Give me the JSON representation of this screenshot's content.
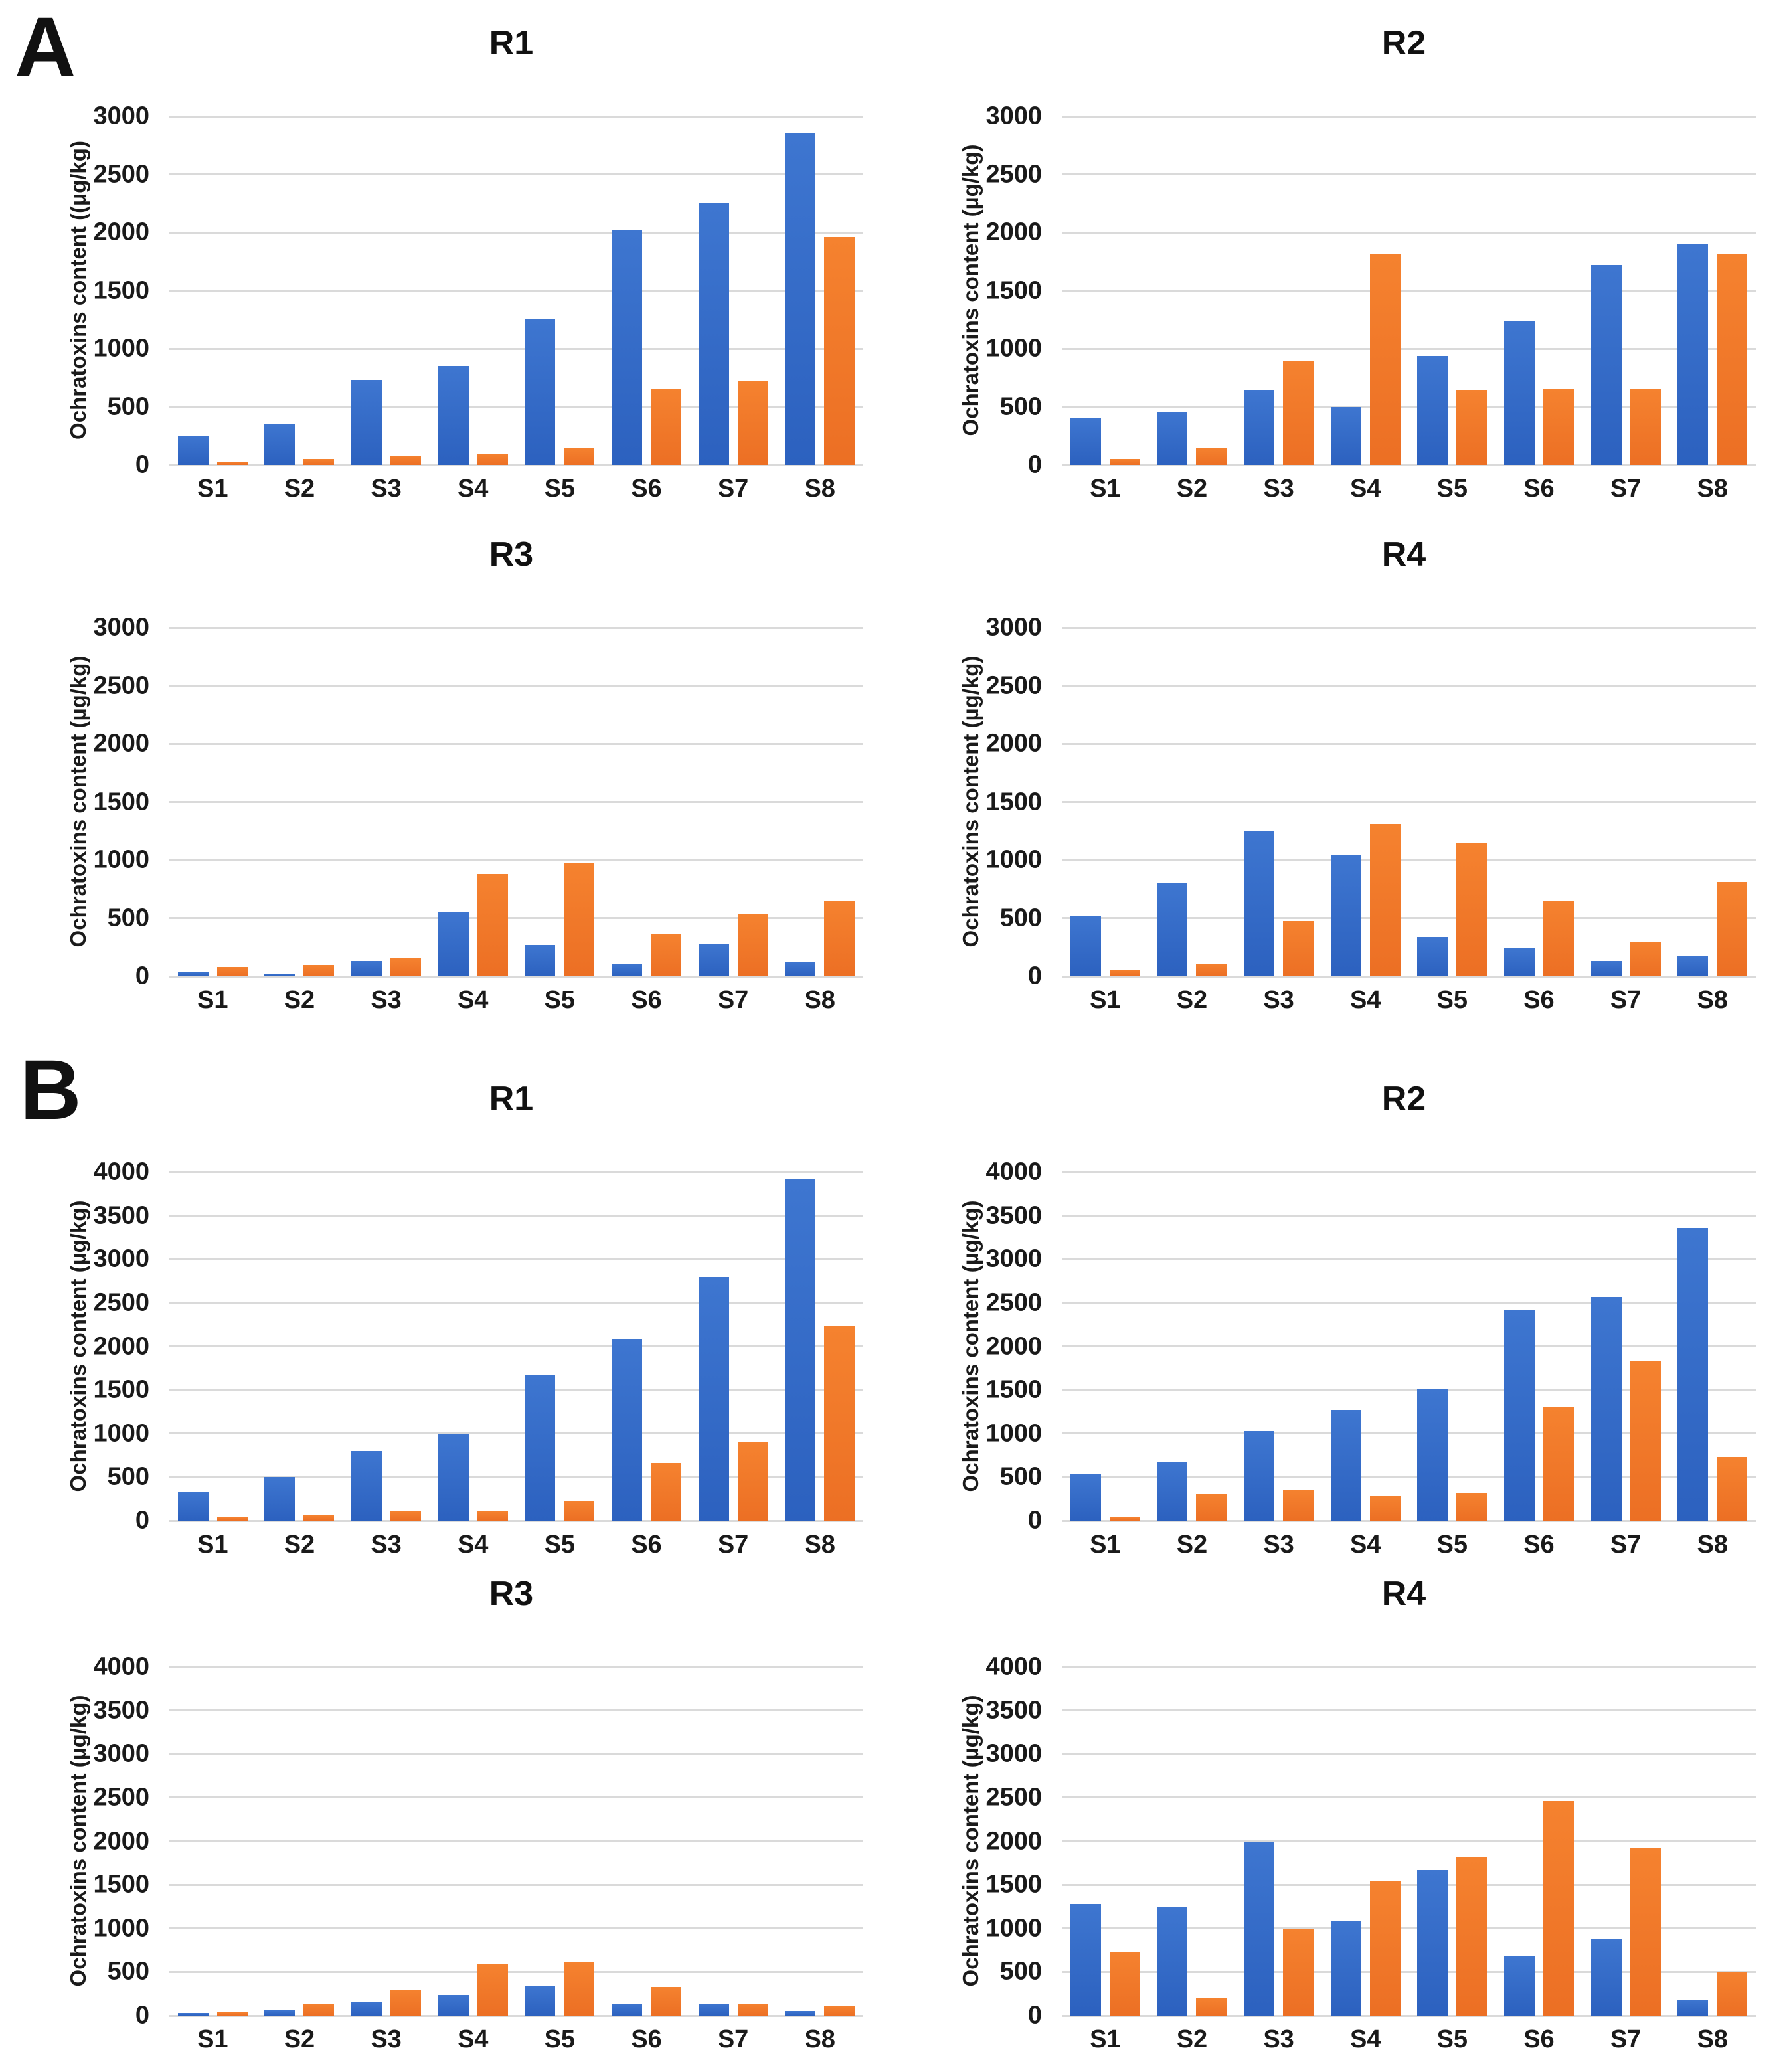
{
  "figure": {
    "panel_a_label": "A",
    "panel_b_label": "B"
  },
  "colors": {
    "series_blue": "#2f66c4",
    "series_orange": "#ee7428",
    "gridline": "#dadada",
    "text": "#1a1a1a",
    "background": "#ffffff"
  },
  "chart_data": [
    {
      "type": "bar",
      "panel": "A",
      "title": "R1",
      "ylabel": "Ochratoxins content ((µg/kg)",
      "xlabel": "",
      "categories": [
        "S1",
        "S2",
        "S3",
        "S4",
        "S5",
        "S6",
        "S7",
        "S8"
      ],
      "ylim": [
        0,
        3000
      ],
      "yticks": [
        0,
        500,
        1000,
        1500,
        2000,
        2500,
        3000
      ],
      "grid": true,
      "legend": "none",
      "series": [
        {
          "name": "blue",
          "color_key": "series_blue",
          "values": [
            250,
            350,
            730,
            850,
            1250,
            2020,
            2260,
            2860
          ]
        },
        {
          "name": "orange",
          "color_key": "series_orange",
          "values": [
            30,
            50,
            80,
            95,
            150,
            660,
            720,
            1960
          ]
        }
      ]
    },
    {
      "type": "bar",
      "panel": "A",
      "title": "R2",
      "ylabel": "Ochratoxins content (µg/kg)",
      "xlabel": "",
      "categories": [
        "S1",
        "S2",
        "S3",
        "S4",
        "S5",
        "S6",
        "S7",
        "S8"
      ],
      "ylim": [
        0,
        3000
      ],
      "yticks": [
        0,
        500,
        1000,
        1500,
        2000,
        2500,
        3000
      ],
      "grid": true,
      "legend": "none",
      "series": [
        {
          "name": "blue",
          "color_key": "series_blue",
          "values": [
            400,
            460,
            640,
            500,
            940,
            1240,
            1720,
            1900
          ]
        },
        {
          "name": "orange",
          "color_key": "series_orange",
          "values": [
            50,
            150,
            900,
            1820,
            640,
            650,
            650,
            1820
          ]
        }
      ]
    },
    {
      "type": "bar",
      "panel": "A",
      "title": "R3",
      "ylabel": "Ochratoxins content (µg/kg)",
      "xlabel": "",
      "categories": [
        "S1",
        "S2",
        "S3",
        "S4",
        "S5",
        "S6",
        "S7",
        "S8"
      ],
      "ylim": [
        0,
        3000
      ],
      "yticks": [
        0,
        500,
        1000,
        1500,
        2000,
        2500,
        3000
      ],
      "grid": true,
      "legend": "none",
      "series": [
        {
          "name": "blue",
          "color_key": "series_blue",
          "values": [
            40,
            25,
            130,
            550,
            270,
            105,
            280,
            120
          ]
        },
        {
          "name": "orange",
          "color_key": "series_orange",
          "values": [
            80,
            95,
            155,
            880,
            970,
            360,
            540,
            650
          ]
        }
      ]
    },
    {
      "type": "bar",
      "panel": "A",
      "title": "R4",
      "ylabel": "Ochratoxins content (µg/kg)",
      "xlabel": "",
      "categories": [
        "S1",
        "S2",
        "S3",
        "S4",
        "S5",
        "S6",
        "S7",
        "S8"
      ],
      "ylim": [
        0,
        3000
      ],
      "yticks": [
        0,
        500,
        1000,
        1500,
        2000,
        2500,
        3000
      ],
      "grid": true,
      "legend": "none",
      "series": [
        {
          "name": "blue",
          "color_key": "series_blue",
          "values": [
            520,
            800,
            1250,
            1040,
            340,
            240,
            130,
            170
          ]
        },
        {
          "name": "orange",
          "color_key": "series_orange",
          "values": [
            55,
            110,
            475,
            1310,
            1145,
            650,
            300,
            810
          ]
        }
      ]
    },
    {
      "type": "bar",
      "panel": "B",
      "title": "R1",
      "ylabel": "Ochratoxins content (µg/kg)",
      "xlabel": "",
      "categories": [
        "S1",
        "S2",
        "S3",
        "S4",
        "S5",
        "S6",
        "S7",
        "S8"
      ],
      "ylim": [
        0,
        4000
      ],
      "yticks": [
        0,
        500,
        1000,
        1500,
        2000,
        2500,
        3000,
        3500,
        4000
      ],
      "grid": true,
      "legend": "none",
      "series": [
        {
          "name": "blue",
          "color_key": "series_blue",
          "values": [
            330,
            500,
            800,
            1000,
            1680,
            2080,
            2800,
            3920
          ]
        },
        {
          "name": "orange",
          "color_key": "series_orange",
          "values": [
            40,
            60,
            110,
            110,
            230,
            660,
            910,
            2240
          ]
        }
      ]
    },
    {
      "type": "bar",
      "panel": "B",
      "title": "R2",
      "ylabel": "Ochratoxins content (µg/kg)",
      "xlabel": "",
      "categories": [
        "S1",
        "S2",
        "S3",
        "S4",
        "S5",
        "S6",
        "S7",
        "S8"
      ],
      "ylim": [
        0,
        4000
      ],
      "yticks": [
        0,
        500,
        1000,
        1500,
        2000,
        2500,
        3000,
        3500,
        4000
      ],
      "grid": true,
      "legend": "none",
      "series": [
        {
          "name": "blue",
          "color_key": "series_blue",
          "values": [
            530,
            680,
            1030,
            1270,
            1520,
            2420,
            2570,
            3360
          ]
        },
        {
          "name": "orange",
          "color_key": "series_orange",
          "values": [
            40,
            310,
            360,
            290,
            320,
            1310,
            1830,
            730
          ]
        }
      ]
    },
    {
      "type": "bar",
      "panel": "B",
      "title": "R3",
      "ylabel": "Ochratoxins content (µg/kg)",
      "xlabel": "",
      "categories": [
        "S1",
        "S2",
        "S3",
        "S4",
        "S5",
        "S6",
        "S7",
        "S8"
      ],
      "ylim": [
        0,
        4000
      ],
      "yticks": [
        0,
        500,
        1000,
        1500,
        2000,
        2500,
        3000,
        3500,
        4000
      ],
      "grid": true,
      "legend": "none",
      "series": [
        {
          "name": "blue",
          "color_key": "series_blue",
          "values": [
            30,
            60,
            160,
            240,
            340,
            140,
            140,
            50
          ]
        },
        {
          "name": "orange",
          "color_key": "series_orange",
          "values": [
            40,
            140,
            300,
            590,
            610,
            330,
            140,
            110
          ]
        }
      ]
    },
    {
      "type": "bar",
      "panel": "B",
      "title": "R4",
      "ylabel": "Ochratoxins content (µg/kg)",
      "xlabel": "",
      "categories": [
        "S1",
        "S2",
        "S3",
        "S4",
        "S5",
        "S6",
        "S7",
        "S8"
      ],
      "ylim": [
        0,
        4000
      ],
      "yticks": [
        0,
        500,
        1000,
        1500,
        2000,
        2500,
        3000,
        3500,
        4000
      ],
      "grid": true,
      "legend": "none",
      "series": [
        {
          "name": "blue",
          "color_key": "series_blue",
          "values": [
            1280,
            1250,
            2000,
            1090,
            1670,
            680,
            880,
            185
          ]
        },
        {
          "name": "orange",
          "color_key": "series_orange",
          "values": [
            730,
            200,
            1000,
            1540,
            1810,
            2460,
            1920,
            500
          ]
        }
      ]
    }
  ]
}
